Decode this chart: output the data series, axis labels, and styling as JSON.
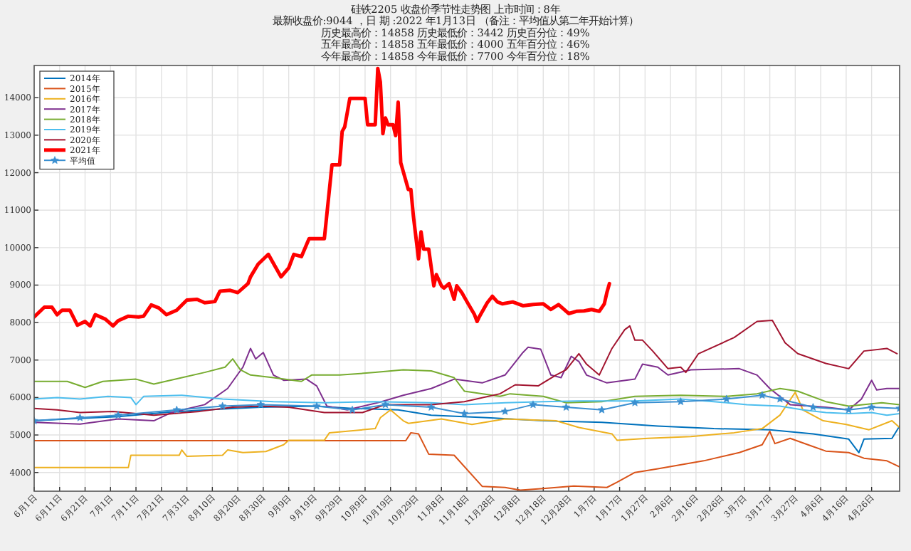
{
  "chart_data": {
    "type": "line",
    "title": "硅铁2205   收盘价季节性走势图      上市时间：8年",
    "subtitle": "最新收盘价:9044 ，日  期 :2022 年1月13日  （备注：平均值从第二年开始计算）",
    "annotations": [
      "历史最高价：14858 历史最低价：3442 历史百分位：49%",
      "五年最高价：14858 五年最低价：4000 五年百分位：46%",
      "今年最高价：14858 今年最低价：7700 今年百分位：18%"
    ],
    "xlim": [
      "2021-06-01",
      "2022-05-07"
    ],
    "ylim": [
      3500,
      14860
    ],
    "xticks": [
      {
        "value": "2021-06-01",
        "label": "6月1日"
      },
      {
        "value": "2021-06-11",
        "label": "6月11日"
      },
      {
        "value": "2021-06-21",
        "label": "6月21日"
      },
      {
        "value": "2021-07-01",
        "label": "7月1日"
      },
      {
        "value": "2021-07-11",
        "label": "7月11日"
      },
      {
        "value": "2021-07-21",
        "label": "7月21日"
      },
      {
        "value": "2021-07-31",
        "label": "7月31日"
      },
      {
        "value": "2021-08-10",
        "label": "8月10日"
      },
      {
        "value": "2021-08-20",
        "label": "8月20日"
      },
      {
        "value": "2021-08-30",
        "label": "8月30日"
      },
      {
        "value": "2021-09-09",
        "label": "9月9日"
      },
      {
        "value": "2021-09-19",
        "label": "9月19日"
      },
      {
        "value": "2021-09-29",
        "label": "9月29日"
      },
      {
        "value": "2021-10-09",
        "label": "10月9日"
      },
      {
        "value": "2021-10-19",
        "label": "10月19日"
      },
      {
        "value": "2021-10-29",
        "label": "10月29日"
      },
      {
        "value": "2021-11-08",
        "label": "11月8日"
      },
      {
        "value": "2021-11-18",
        "label": "11月18日"
      },
      {
        "value": "2021-11-28",
        "label": "11月28日"
      },
      {
        "value": "2021-12-08",
        "label": "12月8日"
      },
      {
        "value": "2021-12-18",
        "label": "12月18日"
      },
      {
        "value": "2021-12-28",
        "label": "12月28日"
      },
      {
        "value": "2022-01-07",
        "label": "1月7日"
      },
      {
        "value": "2022-01-17",
        "label": "1月17日"
      },
      {
        "value": "2022-01-27",
        "label": "1月27日"
      },
      {
        "value": "2022-02-06",
        "label": "2月6日"
      },
      {
        "value": "2022-02-16",
        "label": "2月16日"
      },
      {
        "value": "2022-02-26",
        "label": "2月26日"
      },
      {
        "value": "2022-03-07",
        "label": "3月7日"
      },
      {
        "value": "2022-03-17",
        "label": "3月17日"
      },
      {
        "value": "2022-03-27",
        "label": "3月27日"
      },
      {
        "value": "2022-04-06",
        "label": "4月6日"
      },
      {
        "value": "2022-04-16",
        "label": "4月16日"
      },
      {
        "value": "2022-04-26",
        "label": "4月26日"
      }
    ],
    "yticks": [
      4000,
      5000,
      6000,
      7000,
      8000,
      9000,
      10000,
      11000,
      12000,
      13000,
      14000
    ],
    "grid": true,
    "legend": "top left",
    "line_style": "solid",
    "series": [
      {
        "name": "2014年",
        "color": "#0072bd",
        "x": [
          "2021-06-01",
          "2021-06-14",
          "2021-07-04",
          "2021-07-22",
          "2021-08-07",
          "2021-08-29",
          "2021-09-20",
          "2021-10-04",
          "2021-10-22",
          "2021-11-04",
          "2021-11-26",
          "2021-12-18",
          "2022-01-10",
          "2022-02-01",
          "2022-02-23",
          "2022-03-17",
          "2022-04-03",
          "2022-04-17",
          "2022-04-21",
          "2022-04-23",
          "2022-05-04",
          "2022-05-07"
        ],
        "values": [
          5380,
          5430,
          5490,
          5600,
          5670,
          5740,
          5770,
          5710,
          5670,
          5530,
          5460,
          5380,
          5340,
          5240,
          5170,
          5140,
          5030,
          4890,
          4530,
          4890,
          4910,
          5240
        ]
      },
      {
        "name": "2015年",
        "color": "#d95319",
        "x": [
          "2021-06-01",
          "2021-10-25",
          "2021-10-27",
          "2021-10-30",
          "2021-11-03",
          "2021-11-13",
          "2021-11-24",
          "2021-12-03",
          "2021-12-09",
          "2021-12-18",
          "2021-12-30",
          "2022-01-12",
          "2022-01-16",
          "2022-01-23",
          "2022-02-01",
          "2022-02-19",
          "2022-03-05",
          "2022-03-14",
          "2022-03-17",
          "2022-03-19",
          "2022-03-25",
          "2022-04-01",
          "2022-04-08",
          "2022-04-17",
          "2022-04-23",
          "2022-05-02",
          "2022-05-07"
        ],
        "values": [
          4850,
          4850,
          5060,
          5030,
          4490,
          4460,
          3630,
          3600,
          3530,
          3570,
          3640,
          3600,
          3740,
          4000,
          4100,
          4310,
          4530,
          4740,
          5100,
          4770,
          4910,
          4740,
          4570,
          4530,
          4380,
          4310,
          4150
        ]
      },
      {
        "name": "2016年",
        "color": "#edb120",
        "x": [
          "2021-06-01",
          "2021-07-08",
          "2021-07-09",
          "2021-07-28",
          "2021-07-29",
          "2021-07-31",
          "2021-08-14",
          "2021-08-16",
          "2021-08-22",
          "2021-08-31",
          "2021-09-07",
          "2021-09-09",
          "2021-09-23",
          "2021-09-25",
          "2021-10-13",
          "2021-10-15",
          "2021-10-19",
          "2021-10-24",
          "2021-10-26",
          "2021-11-08",
          "2021-11-20",
          "2021-12-03",
          "2021-12-23",
          "2022-01-01",
          "2022-01-14",
          "2022-01-16",
          "2022-01-28",
          "2022-02-14",
          "2022-03-03",
          "2022-03-14",
          "2022-03-21",
          "2022-03-27",
          "2022-03-30",
          "2022-04-07",
          "2022-04-16",
          "2022-04-25",
          "2022-05-04",
          "2022-05-07"
        ],
        "values": [
          4130,
          4130,
          4460,
          4460,
          4600,
          4430,
          4460,
          4600,
          4530,
          4560,
          4740,
          4860,
          4860,
          5060,
          5170,
          5460,
          5670,
          5380,
          5310,
          5430,
          5280,
          5430,
          5380,
          5200,
          5030,
          4860,
          4910,
          4960,
          5060,
          5170,
          5530,
          6140,
          5670,
          5380,
          5280,
          5140,
          5380,
          5200
        ]
      },
      {
        "name": "2017年",
        "color": "#7e2f8e",
        "x": [
          "2021-06-01",
          "2021-06-19",
          "2021-07-04",
          "2021-07-18",
          "2021-07-25",
          "2021-08-07",
          "2021-08-16",
          "2021-08-22",
          "2021-08-25",
          "2021-08-27",
          "2021-08-30",
          "2021-09-03",
          "2021-09-07",
          "2021-09-16",
          "2021-09-20",
          "2021-09-24",
          "2021-10-02",
          "2021-10-15",
          "2021-10-24",
          "2021-11-04",
          "2021-11-13",
          "2021-11-24",
          "2021-12-03",
          "2021-12-10",
          "2021-12-12",
          "2021-12-17",
          "2021-12-21",
          "2021-12-25",
          "2021-12-29",
          "2022-01-01",
          "2022-01-04",
          "2022-01-12",
          "2022-01-23",
          "2022-01-26",
          "2022-02-01",
          "2022-02-05",
          "2022-02-14",
          "2022-03-05",
          "2022-03-12",
          "2022-03-17",
          "2022-03-25",
          "2022-04-08",
          "2022-04-17",
          "2022-04-22",
          "2022-04-26",
          "2022-04-28",
          "2022-05-02",
          "2022-05-07"
        ],
        "values": [
          5340,
          5290,
          5430,
          5380,
          5600,
          5810,
          6240,
          6810,
          7310,
          7030,
          7200,
          6600,
          6460,
          6490,
          6310,
          5770,
          5670,
          5880,
          6060,
          6240,
          6490,
          6390,
          6600,
          7200,
          7340,
          7290,
          6600,
          6530,
          7100,
          6960,
          6600,
          6390,
          6490,
          6890,
          6810,
          6600,
          6740,
          6770,
          6600,
          6240,
          5810,
          5740,
          5670,
          5960,
          6460,
          6200,
          6240,
          6240
        ]
      },
      {
        "name": "2018年",
        "color": "#77ac30",
        "x": [
          "2021-06-01",
          "2021-06-14",
          "2021-06-21",
          "2021-06-28",
          "2021-07-11",
          "2021-07-18",
          "2021-07-29",
          "2021-08-07",
          "2021-08-15",
          "2021-08-18",
          "2021-08-21",
          "2021-08-25",
          "2021-09-03",
          "2021-09-14",
          "2021-09-18",
          "2021-09-29",
          "2021-10-13",
          "2021-10-24",
          "2021-11-04",
          "2021-11-13",
          "2021-11-17",
          "2021-12-01",
          "2021-12-05",
          "2021-12-18",
          "2021-12-27",
          "2022-01-10",
          "2022-01-23",
          "2022-02-10",
          "2022-02-28",
          "2022-03-12",
          "2022-03-21",
          "2022-03-28",
          "2022-04-08",
          "2022-04-17",
          "2022-04-30",
          "2022-05-07"
        ],
        "values": [
          6430,
          6430,
          6270,
          6430,
          6490,
          6360,
          6530,
          6670,
          6810,
          7030,
          6740,
          6600,
          6530,
          6430,
          6600,
          6600,
          6670,
          6740,
          6710,
          6530,
          6170,
          6030,
          6100,
          6030,
          5860,
          5890,
          6030,
          6060,
          6030,
          6100,
          6240,
          6170,
          5890,
          5770,
          5860,
          5810
        ]
      },
      {
        "name": "2019年",
        "color": "#4dbeee",
        "x": [
          "2021-06-01",
          "2021-06-10",
          "2021-06-19",
          "2021-06-30",
          "2021-07-09",
          "2021-07-11",
          "2021-07-14",
          "2021-07-29",
          "2021-08-14",
          "2021-09-03",
          "2021-09-23",
          "2021-10-13",
          "2021-11-04",
          "2021-11-17",
          "2021-12-03",
          "2021-12-18",
          "2022-01-01",
          "2022-01-23",
          "2022-02-10",
          "2022-02-23",
          "2022-03-08",
          "2022-03-21",
          "2022-03-30",
          "2022-04-08",
          "2022-04-17",
          "2022-04-26",
          "2022-05-02",
          "2022-05-07"
        ],
        "values": [
          5960,
          6000,
          5960,
          6030,
          6000,
          5810,
          6030,
          6060,
          5960,
          5890,
          5860,
          5890,
          5860,
          5810,
          5860,
          5890,
          5910,
          5910,
          5960,
          5890,
          5810,
          5770,
          5670,
          5600,
          5570,
          5600,
          5530,
          5570
        ]
      },
      {
        "name": "2020年",
        "color": "#a2142f",
        "x": [
          "2021-06-01",
          "2021-06-10",
          "2021-06-19",
          "2021-07-02",
          "2021-07-18",
          "2021-08-05",
          "2021-08-18",
          "2021-08-29",
          "2021-09-09",
          "2021-09-23",
          "2021-10-08",
          "2021-10-17",
          "2021-11-04",
          "2021-11-17",
          "2021-12-01",
          "2021-12-07",
          "2021-12-16",
          "2021-12-23",
          "2021-12-27",
          "2022-01-01",
          "2022-01-04",
          "2022-01-09",
          "2022-01-14",
          "2022-01-19",
          "2022-01-21",
          "2022-01-23",
          "2022-01-26",
          "2022-01-30",
          "2022-02-05",
          "2022-02-10",
          "2022-02-12",
          "2022-02-17",
          "2022-03-03",
          "2022-03-12",
          "2022-03-18",
          "2022-03-23",
          "2022-03-28",
          "2022-04-08",
          "2022-04-17",
          "2022-04-23",
          "2022-05-02",
          "2022-05-06"
        ],
        "values": [
          5710,
          5670,
          5600,
          5630,
          5530,
          5630,
          5740,
          5770,
          5740,
          5600,
          5600,
          5810,
          5810,
          5890,
          6100,
          6340,
          6310,
          6600,
          6740,
          7170,
          6890,
          6600,
          7310,
          7810,
          7910,
          7530,
          7530,
          7240,
          6770,
          6810,
          6670,
          7170,
          7600,
          8030,
          8060,
          7460,
          7170,
          6910,
          6770,
          7240,
          7310,
          7170
        ]
      },
      {
        "name": "2021年",
        "color": "#ff0000",
        "x": [
          "2021-06-01",
          "2021-06-05",
          "2021-06-08",
          "2021-06-10",
          "2021-06-12",
          "2021-06-15",
          "2021-06-18",
          "2021-06-21",
          "2021-06-23",
          "2021-06-25",
          "2021-06-29",
          "2021-07-02",
          "2021-07-04",
          "2021-07-08",
          "2021-07-12",
          "2021-07-14",
          "2021-07-17",
          "2021-07-20",
          "2021-07-23",
          "2021-07-27",
          "2021-07-31",
          "2021-08-04",
          "2021-08-07",
          "2021-08-11",
          "2021-08-13",
          "2021-08-17",
          "2021-08-20",
          "2021-08-24",
          "2021-08-25",
          "2021-08-28",
          "2021-09-01",
          "2021-09-03",
          "2021-09-06",
          "2021-09-09",
          "2021-09-11",
          "2021-09-14",
          "2021-09-17",
          "2021-09-19",
          "2021-09-23",
          "2021-09-26",
          "2021-09-29",
          "2021-09-30",
          "2021-10-01",
          "2021-10-03",
          "2021-10-09",
          "2021-10-10",
          "2021-10-13",
          "2021-10-14",
          "2021-10-15",
          "2021-10-16",
          "2021-10-17",
          "2021-10-18",
          "2021-10-20",
          "2021-10-21",
          "2021-10-22",
          "2021-10-23",
          "2021-10-26",
          "2021-10-27",
          "2021-10-28",
          "2021-10-30",
          "2021-10-31",
          "2021-11-01",
          "2021-11-03",
          "2021-11-05",
          "2021-11-06",
          "2021-11-08",
          "2021-11-09",
          "2021-11-11",
          "2021-11-13",
          "2021-11-14",
          "2021-11-16",
          "2021-11-18",
          "2021-11-21",
          "2021-11-22",
          "2021-11-23",
          "2021-11-26",
          "2021-11-28",
          "2021-11-30",
          "2021-12-02",
          "2021-12-06",
          "2021-12-10",
          "2021-12-14",
          "2021-12-18",
          "2021-12-21",
          "2021-12-24",
          "2021-12-28",
          "2021-12-31",
          "2022-01-03",
          "2022-01-06",
          "2022-01-09",
          "2022-01-11",
          "2022-01-12",
          "2022-01-13"
        ],
        "values": [
          8150,
          8410,
          8410,
          8210,
          8330,
          8330,
          7930,
          8030,
          7910,
          8210,
          8090,
          7910,
          8050,
          8170,
          8150,
          8170,
          8470,
          8390,
          8210,
          8330,
          8600,
          8620,
          8530,
          8560,
          8840,
          8860,
          8800,
          9040,
          9220,
          9560,
          9820,
          9580,
          9220,
          9460,
          9820,
          9760,
          10240,
          10240,
          10240,
          12210,
          12210,
          13100,
          13220,
          13980,
          13980,
          13280,
          13280,
          14780,
          14420,
          13040,
          13460,
          13280,
          13280,
          12990,
          13880,
          12270,
          11550,
          11550,
          10830,
          9700,
          10420,
          9960,
          9960,
          8980,
          9280,
          8980,
          8920,
          9040,
          8620,
          8980,
          8800,
          8560,
          8210,
          8030,
          8170,
          8530,
          8700,
          8550,
          8500,
          8550,
          8450,
          8480,
          8500,
          8350,
          8480,
          8240,
          8300,
          8310,
          8350,
          8300,
          8500,
          8800,
          9040
        ]
      },
      {
        "name": "平均值",
        "color": "#3a8fd0",
        "marker": "star",
        "x": [
          "2021-06-01",
          "2021-06-19",
          "2021-07-04",
          "2021-07-27",
          "2021-08-14",
          "2021-08-29",
          "2021-09-20",
          "2021-10-04",
          "2021-10-17",
          "2021-11-04",
          "2021-11-17",
          "2021-12-03",
          "2021-12-14",
          "2021-12-27",
          "2022-01-10",
          "2022-01-23",
          "2022-02-10",
          "2022-02-28",
          "2022-03-14",
          "2022-03-21",
          "2022-04-03",
          "2022-04-17",
          "2022-04-26",
          "2022-05-07"
        ],
        "values": [
          5380,
          5460,
          5530,
          5670,
          5770,
          5810,
          5770,
          5670,
          5810,
          5740,
          5570,
          5630,
          5810,
          5740,
          5670,
          5860,
          5890,
          5960,
          6060,
          5960,
          5740,
          5670,
          5740,
          5710
        ]
      }
    ]
  }
}
